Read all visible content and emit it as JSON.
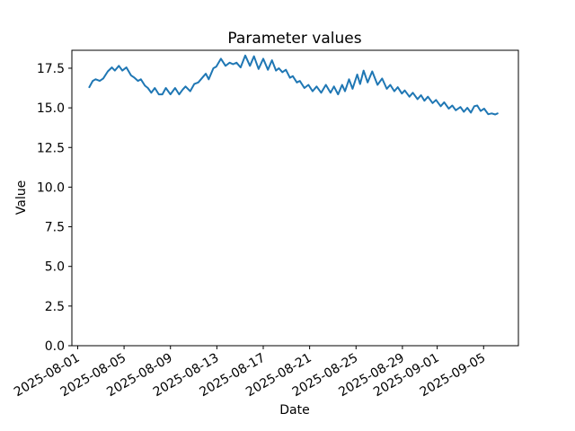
{
  "figure": {
    "title": "Parameter values",
    "xlabel": "Date",
    "ylabel": "Value"
  },
  "chart_data": {
    "type": "line",
    "title": "Parameter values",
    "xlabel": "Date",
    "ylabel": "Value",
    "grid": false,
    "legend": false,
    "background": "#ffffff",
    "spine_color": "#000000",
    "x_unit": "days since 2025-08-01",
    "xlim": [
      -0.5,
      38.0
    ],
    "ylim": [
      0.0,
      18.63
    ],
    "x_ticks": [
      {
        "d": 0,
        "label": "2025-08-01"
      },
      {
        "d": 4,
        "label": "2025-08-05"
      },
      {
        "d": 8,
        "label": "2025-08-09"
      },
      {
        "d": 12,
        "label": "2025-08-13"
      },
      {
        "d": 16,
        "label": "2025-08-17"
      },
      {
        "d": 20,
        "label": "2025-08-21"
      },
      {
        "d": 24,
        "label": "2025-08-25"
      },
      {
        "d": 28,
        "label": "2025-08-29"
      },
      {
        "d": 31,
        "label": "2025-09-01"
      },
      {
        "d": 35,
        "label": "2025-09-05"
      }
    ],
    "y_ticks": [
      {
        "v": 0.0,
        "label": "0.0"
      },
      {
        "v": 2.5,
        "label": "2.5"
      },
      {
        "v": 5.0,
        "label": "5.0"
      },
      {
        "v": 7.5,
        "label": "7.5"
      },
      {
        "v": 10.0,
        "label": "10.0"
      },
      {
        "v": 12.5,
        "label": "12.5"
      },
      {
        "v": 15.0,
        "label": "15.0"
      },
      {
        "v": 17.5,
        "label": "17.5"
      }
    ],
    "series": [
      {
        "name": "Parameter values",
        "color": "#1f77b4",
        "points": [
          [
            1.0,
            16.3
          ],
          [
            1.3,
            16.7
          ],
          [
            1.55,
            16.8
          ],
          [
            1.9,
            16.7
          ],
          [
            2.2,
            16.85
          ],
          [
            2.6,
            17.3
          ],
          [
            2.95,
            17.55
          ],
          [
            3.2,
            17.35
          ],
          [
            3.55,
            17.65
          ],
          [
            3.85,
            17.35
          ],
          [
            4.2,
            17.55
          ],
          [
            4.6,
            17.05
          ],
          [
            4.9,
            16.9
          ],
          [
            5.2,
            16.7
          ],
          [
            5.45,
            16.8
          ],
          [
            5.8,
            16.4
          ],
          [
            6.05,
            16.25
          ],
          [
            6.35,
            15.95
          ],
          [
            6.65,
            16.25
          ],
          [
            7.0,
            15.85
          ],
          [
            7.3,
            15.85
          ],
          [
            7.6,
            16.25
          ],
          [
            8.0,
            15.85
          ],
          [
            8.4,
            16.25
          ],
          [
            8.75,
            15.85
          ],
          [
            9.05,
            16.15
          ],
          [
            9.3,
            16.35
          ],
          [
            9.7,
            16.05
          ],
          [
            10.05,
            16.5
          ],
          [
            10.4,
            16.6
          ],
          [
            10.8,
            16.95
          ],
          [
            11.05,
            17.15
          ],
          [
            11.3,
            16.8
          ],
          [
            11.7,
            17.5
          ],
          [
            11.95,
            17.6
          ],
          [
            12.35,
            18.1
          ],
          [
            12.75,
            17.65
          ],
          [
            13.1,
            17.85
          ],
          [
            13.4,
            17.75
          ],
          [
            13.7,
            17.85
          ],
          [
            14.05,
            17.55
          ],
          [
            14.45,
            18.3
          ],
          [
            14.85,
            17.65
          ],
          [
            15.2,
            18.25
          ],
          [
            15.6,
            17.45
          ],
          [
            16.0,
            18.1
          ],
          [
            16.4,
            17.4
          ],
          [
            16.75,
            18.0
          ],
          [
            17.1,
            17.35
          ],
          [
            17.35,
            17.5
          ],
          [
            17.65,
            17.25
          ],
          [
            17.95,
            17.4
          ],
          [
            18.3,
            16.9
          ],
          [
            18.55,
            17.0
          ],
          [
            18.9,
            16.6
          ],
          [
            19.15,
            16.7
          ],
          [
            19.55,
            16.25
          ],
          [
            19.9,
            16.45
          ],
          [
            20.25,
            16.05
          ],
          [
            20.6,
            16.35
          ],
          [
            21.0,
            15.95
          ],
          [
            21.4,
            16.45
          ],
          [
            21.8,
            15.95
          ],
          [
            22.1,
            16.35
          ],
          [
            22.45,
            15.85
          ],
          [
            22.8,
            16.45
          ],
          [
            23.05,
            16.05
          ],
          [
            23.4,
            16.8
          ],
          [
            23.7,
            16.2
          ],
          [
            24.1,
            17.1
          ],
          [
            24.35,
            16.5
          ],
          [
            24.65,
            17.35
          ],
          [
            25.0,
            16.6
          ],
          [
            25.4,
            17.3
          ],
          [
            25.85,
            16.45
          ],
          [
            26.25,
            16.85
          ],
          [
            26.65,
            16.2
          ],
          [
            26.95,
            16.45
          ],
          [
            27.3,
            16.05
          ],
          [
            27.6,
            16.3
          ],
          [
            27.95,
            15.9
          ],
          [
            28.2,
            16.1
          ],
          [
            28.6,
            15.7
          ],
          [
            28.9,
            15.95
          ],
          [
            29.3,
            15.55
          ],
          [
            29.6,
            15.8
          ],
          [
            29.9,
            15.45
          ],
          [
            30.2,
            15.7
          ],
          [
            30.6,
            15.3
          ],
          [
            30.9,
            15.5
          ],
          [
            31.3,
            15.1
          ],
          [
            31.6,
            15.35
          ],
          [
            32.0,
            14.95
          ],
          [
            32.3,
            15.15
          ],
          [
            32.6,
            14.85
          ],
          [
            33.0,
            15.05
          ],
          [
            33.3,
            14.75
          ],
          [
            33.6,
            15.0
          ],
          [
            33.9,
            14.7
          ],
          [
            34.2,
            15.1
          ],
          [
            34.45,
            15.15
          ],
          [
            34.75,
            14.8
          ],
          [
            35.05,
            14.95
          ],
          [
            35.4,
            14.6
          ],
          [
            35.7,
            14.65
          ],
          [
            36.0,
            14.58
          ],
          [
            36.2,
            14.65
          ]
        ]
      }
    ]
  }
}
